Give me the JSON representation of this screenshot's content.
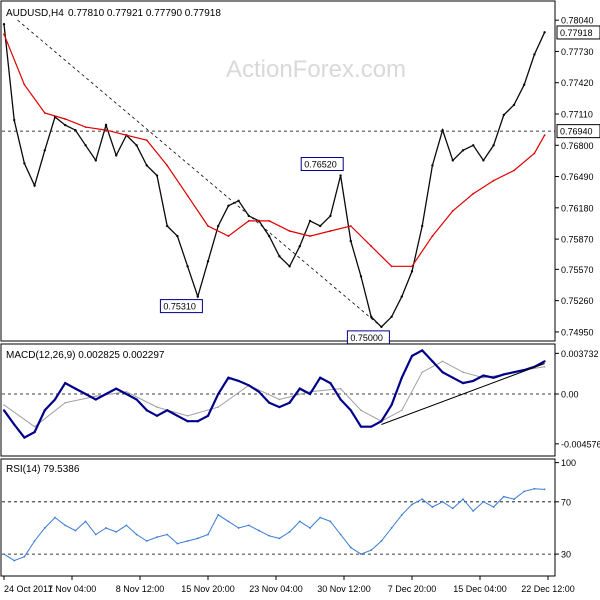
{
  "header": {
    "symbol": "AUDUSD,H4",
    "ohlc": "0.77810 0.77921 0.77790 0.77918"
  },
  "watermark": "ActionForex.com",
  "colors": {
    "price": "#0a0a0a",
    "moving_average": "#e00000",
    "macd": "#00008b",
    "macd_signal": "#a0a0a0",
    "rsi": "#3a7bd5",
    "grid_dash": "#000000",
    "watermark": "#d9d9d9"
  },
  "chart_data": [
    {
      "type": "line",
      "panel": "price",
      "y_ticks": [
        0.7804,
        0.7773,
        0.7742,
        0.7711,
        0.768,
        0.7649,
        0.7618,
        0.7587,
        0.7557,
        0.7526,
        0.7495
      ],
      "y_tick_labels": [
        "0.78040",
        "0.77730",
        "0.77420",
        "0.77110",
        "0.76800",
        "0.76490",
        "0.76180",
        "0.75870",
        "0.75570",
        "0.75260",
        "0.74950"
      ],
      "ylim": [
        0.7486,
        0.7823
      ],
      "price_tags": [
        {
          "label": "0.77918",
          "value": 0.77918
        },
        {
          "label": "0.76940",
          "value": 0.7694
        }
      ],
      "horizontal_line": 0.7694,
      "annotations": [
        {
          "label": "0.75310",
          "value": 0.7531,
          "x": 56
        },
        {
          "label": "0.76520",
          "value": 0.7652,
          "x": 98
        },
        {
          "label": "0.75000",
          "value": 0.75,
          "x": 111
        }
      ],
      "trendline": {
        "from": {
          "x": 4,
          "y": 0.7804
        },
        "to": {
          "x": 111,
          "y": 0.75
        }
      },
      "series": [
        {
          "x": [
            0,
            3,
            6,
            9,
            12,
            15,
            18,
            21,
            24,
            27,
            30,
            33,
            36,
            39,
            42,
            45,
            48,
            51,
            54,
            57,
            60,
            63,
            66,
            69,
            72,
            75,
            78,
            81,
            84,
            87,
            90,
            93,
            96,
            99,
            102,
            105,
            108,
            111,
            114,
            117,
            120,
            123,
            126,
            129,
            132,
            135,
            138,
            141,
            144,
            147,
            150,
            153,
            156,
            159
          ],
          "values": [
            0.78,
            0.7705,
            0.7662,
            0.764,
            0.7675,
            0.7708,
            0.77,
            0.7695,
            0.768,
            0.7665,
            0.77,
            0.767,
            0.769,
            0.768,
            0.766,
            0.765,
            0.76,
            0.759,
            0.756,
            0.753,
            0.7565,
            0.76,
            0.762,
            0.7625,
            0.761,
            0.7605,
            0.759,
            0.757,
            0.756,
            0.758,
            0.7605,
            0.76,
            0.761,
            0.765,
            0.7585,
            0.755,
            0.751,
            0.75,
            0.751,
            0.753,
            0.7555,
            0.76,
            0.766,
            0.7695,
            0.7665,
            0.7675,
            0.768,
            0.7665,
            0.768,
            0.771,
            0.772,
            0.774,
            0.777,
            0.7792
          ]
        },
        {
          "x": [
            0,
            6,
            12,
            18,
            24,
            30,
            36,
            42,
            48,
            54,
            60,
            66,
            72,
            78,
            84,
            90,
            96,
            102,
            108,
            114,
            120,
            126,
            132,
            138,
            144,
            150,
            156,
            159
          ],
          "values": [
            0.779,
            0.774,
            0.7712,
            0.7706,
            0.7698,
            0.7695,
            0.769,
            0.7685,
            0.766,
            0.763,
            0.76,
            0.759,
            0.7605,
            0.7605,
            0.7595,
            0.759,
            0.7595,
            0.76,
            0.758,
            0.756,
            0.756,
            0.759,
            0.7615,
            0.7632,
            0.7645,
            0.7655,
            0.7672,
            0.769
          ]
        }
      ]
    },
    {
      "type": "line",
      "panel": "macd",
      "title": "MACD(12,26,9) 0.002825 0.002297",
      "y_tick_labels": [
        "0.003732",
        "0.00",
        "-0.004576"
      ],
      "y_ticks": [
        0.003732,
        0.0,
        -0.004576
      ],
      "ylim": [
        -0.0056,
        0.0045
      ],
      "series": [
        {
          "x": [
            0,
            3,
            6,
            9,
            12,
            15,
            18,
            21,
            24,
            27,
            30,
            33,
            36,
            39,
            42,
            45,
            48,
            51,
            54,
            57,
            60,
            63,
            66,
            69,
            72,
            75,
            78,
            81,
            84,
            87,
            90,
            93,
            96,
            99,
            102,
            105,
            108,
            111,
            114,
            117,
            120,
            123,
            126,
            129,
            132,
            135,
            138,
            141,
            144,
            147,
            150,
            153,
            156,
            159
          ],
          "values": [
            -0.0015,
            -0.0028,
            -0.004,
            -0.0035,
            -0.0015,
            -0.0005,
            0.001,
            0.0005,
            0.0,
            -0.0005,
            0.0,
            0.0005,
            0.0,
            -0.0005,
            -0.0015,
            -0.002,
            -0.0015,
            -0.002,
            -0.0025,
            -0.0025,
            -0.002,
            0.0,
            0.0015,
            0.0012,
            0.0008,
            0.0002,
            -0.0008,
            -0.0012,
            -0.0008,
            0.0005,
            0.0,
            0.0015,
            0.001,
            -0.0005,
            -0.0015,
            -0.003,
            -0.003,
            -0.0025,
            -0.001,
            0.0015,
            0.0035,
            0.004,
            0.003,
            0.002,
            0.0015,
            0.001,
            0.0012,
            0.0017,
            0.0015,
            0.0018,
            0.002,
            0.0022,
            0.0025,
            0.003
          ]
        },
        {
          "x": [
            0,
            9,
            18,
            27,
            36,
            45,
            54,
            63,
            72,
            81,
            90,
            99,
            105,
            111,
            117,
            123,
            129,
            135,
            141,
            147,
            153,
            159
          ],
          "values": [
            -0.001,
            -0.003,
            -0.0008,
            -0.0002,
            0.0002,
            -0.0012,
            -0.002,
            -0.0012,
            0.0008,
            -0.0005,
            0.0002,
            0.0005,
            -0.0015,
            -0.0025,
            -0.0015,
            0.002,
            0.003,
            0.002,
            0.0015,
            0.0018,
            0.0022,
            0.0025
          ]
        }
      ],
      "trendline": {
        "from": {
          "x": 111,
          "y": -0.0028
        },
        "to": {
          "x": 159,
          "y": 0.0028
        }
      }
    },
    {
      "type": "line",
      "panel": "rsi",
      "title": "RSI(14) 79.5386",
      "y_ticks": [
        100,
        70,
        30
      ],
      "y_tick_labels": [
        "100",
        "70",
        "30"
      ],
      "ylim": [
        14,
        102
      ],
      "series": [
        {
          "x": [
            0,
            3,
            6,
            9,
            12,
            15,
            18,
            21,
            24,
            27,
            30,
            33,
            36,
            39,
            42,
            45,
            48,
            51,
            54,
            57,
            60,
            63,
            66,
            69,
            72,
            75,
            78,
            81,
            84,
            87,
            90,
            93,
            96,
            99,
            102,
            105,
            108,
            111,
            114,
            117,
            120,
            123,
            126,
            129,
            132,
            135,
            138,
            141,
            144,
            147,
            150,
            153,
            156,
            159
          ],
          "values": [
            30,
            25,
            28,
            40,
            50,
            58,
            52,
            48,
            55,
            45,
            50,
            47,
            52,
            45,
            40,
            43,
            45,
            38,
            40,
            42,
            45,
            60,
            55,
            50,
            52,
            48,
            44,
            42,
            47,
            55,
            50,
            58,
            55,
            45,
            35,
            30,
            33,
            40,
            50,
            60,
            68,
            72,
            66,
            70,
            65,
            72,
            63,
            70,
            66,
            74,
            72,
            78,
            80,
            79.5
          ]
        }
      ]
    }
  ],
  "x_axis_labels": [
    "24 Oct 2017",
    "1 Nov 04:00",
    "8 Nov 12:00",
    "15 Nov 20:00",
    "23 Nov 04:00",
    "30 Nov 12:00",
    "7 Dec 20:00",
    "15 Dec 04:00",
    "22 Dec 12:00"
  ],
  "x_axis_positions": [
    0,
    20,
    40,
    60,
    80,
    100,
    120,
    140,
    160
  ]
}
